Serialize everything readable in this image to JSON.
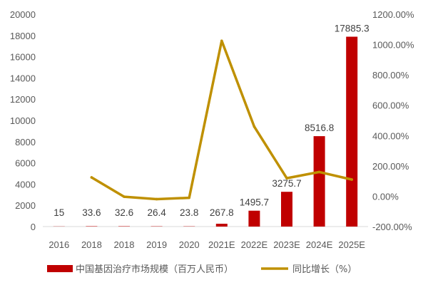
{
  "chart_data": {
    "type": "bar",
    "categories": [
      "2016",
      "2018",
      "2018",
      "2019",
      "2020",
      "2021E",
      "2022E",
      "2023E",
      "2024E",
      "2025E"
    ],
    "series": [
      {
        "name": "中国基因治疗市场规模（百万人民币）",
        "type": "bar",
        "axis": "left",
        "color": "#C00000",
        "values": [
          15,
          33.6,
          32.6,
          26.4,
          23.8,
          267.8,
          1495.7,
          3275.7,
          8516.8,
          17885.3
        ],
        "labels": [
          "15",
          "33.6",
          "32.6",
          "26.4",
          "23.8",
          "267.8",
          "1495.7",
          "3275.7",
          "8516.8",
          "17885.3"
        ]
      },
      {
        "name": "同比增长（%）",
        "type": "line",
        "axis": "right",
        "color": "#BF9000",
        "values": [
          null,
          124,
          -3,
          -19,
          -10,
          1025,
          459,
          119,
          160,
          110
        ]
      }
    ],
    "y_left": {
      "min": 0,
      "max": 20000,
      "ticks": [
        "0",
        "2000",
        "4000",
        "6000",
        "8000",
        "10000",
        "12000",
        "14000",
        "16000",
        "18000",
        "20000"
      ]
    },
    "y_right": {
      "min": -200,
      "max": 1200,
      "ticks": [
        "-200.00%",
        "0.00%",
        "200.00%",
        "400.00%",
        "600.00%",
        "800.00%",
        "1000.00%",
        "1200.00%"
      ]
    },
    "grid": false,
    "legend_position": "bottom"
  }
}
